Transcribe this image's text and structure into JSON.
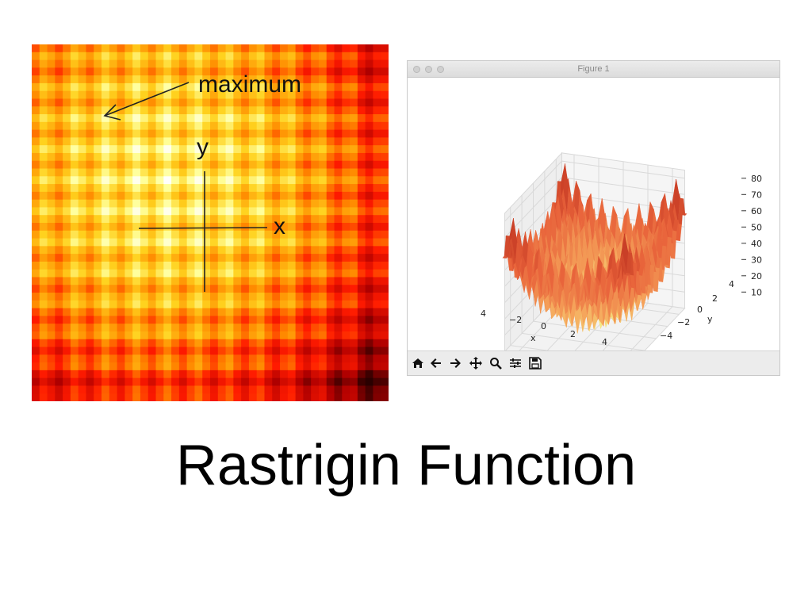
{
  "slide": {
    "title": "Rastrigin Function"
  },
  "heatmap": {
    "annotation": "maximum",
    "y_axis_label": "y",
    "x_axis_label": "x",
    "colormap": [
      "#ffffff",
      "#ffff9a",
      "#ffd21e",
      "#ff8a00",
      "#ff1a00",
      "#b00000",
      "#2a0000"
    ]
  },
  "figure_window": {
    "title": "Figure 1",
    "toolbar": [
      "home-icon",
      "back-arrow-icon",
      "forward-arrow-icon",
      "pan-icon",
      "zoom-icon",
      "subplots-icon",
      "save-icon"
    ]
  },
  "chart_data": {
    "type": "surface",
    "z_ticks": [
      "10",
      "20",
      "30",
      "40",
      "50",
      "60",
      "70",
      "80"
    ],
    "y_ticks": [
      "4",
      "2",
      "0",
      "−2",
      "−4"
    ],
    "x_ticks": [
      "4",
      "−2",
      "0",
      "2",
      "4"
    ],
    "xlabel": "x",
    "ylabel": "y",
    "xlim": [
      -5,
      5
    ],
    "ylim": [
      -5,
      5
    ],
    "zlim": [
      0,
      80
    ],
    "grid": true,
    "colormap": [
      "#5fe0a0",
      "#f4f28a",
      "#f5a35a",
      "#e8623a",
      "#b82c1c"
    ]
  }
}
